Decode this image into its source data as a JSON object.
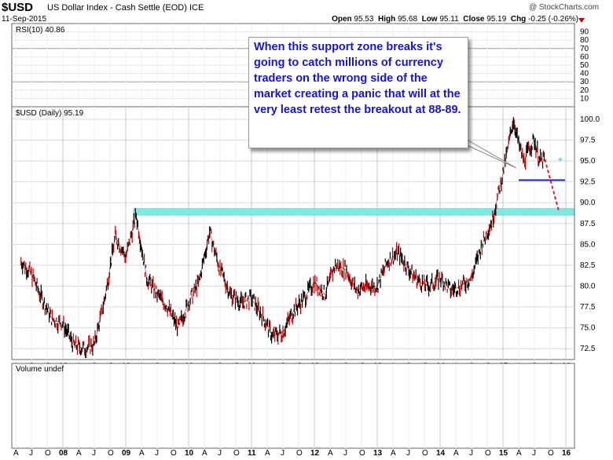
{
  "header": {
    "symbol": "$USD",
    "name": "US Dollar Index - Cash Settle (EOD)",
    "exchange": "ICE",
    "date": "11-Sep-2015",
    "copyright": "@ StockCharts.com",
    "open_label": "Open",
    "open": "95.53",
    "high_label": "High",
    "high": "95.68",
    "low_label": "Low",
    "low": "95.11",
    "close_label": "Close",
    "close": "95.19",
    "chg_label": "Chg",
    "chg": "-0.25 (-0.26%)"
  },
  "rsi_panel": {
    "label": "RSI(10) 40.86",
    "ticks": [
      "90",
      "80",
      "70",
      "60",
      "50",
      "40",
      "30",
      "20",
      "10"
    ]
  },
  "price_panel": {
    "label": "$USD (Daily) 95.19",
    "y_ticks": [
      "100.0",
      "97.5",
      "95.0",
      "92.5",
      "90.0",
      "87.5",
      "85.0",
      "82.5",
      "80.0",
      "77.5",
      "75.0",
      "72.5"
    ]
  },
  "volume_panel": {
    "label": "Volume undef"
  },
  "x_axis_labels": [
    "A",
    "J",
    "O",
    "08",
    "A",
    "J",
    "O",
    "09",
    "A",
    "J",
    "O",
    "10",
    "A",
    "J",
    "O",
    "11",
    "A",
    "J",
    "O",
    "12",
    "A",
    "J",
    "O",
    "13",
    "A",
    "J",
    "O",
    "14",
    "A",
    "J",
    "O",
    "15",
    "A",
    "J",
    "O",
    "16"
  ],
  "annotation": {
    "text": "When this support zone breaks it's going to catch millions of currency traders on the wrong side of the market creating a panic that will at the very least retest the breakout at 88-89."
  },
  "colors": {
    "support_zone": "#7fe8e0",
    "support_line": "#1a1acc",
    "projection": "#e02020",
    "price_up": "#000000",
    "price_down": "#cc0000",
    "annotation_text": "#1515d6"
  },
  "chart_data": {
    "type": "line",
    "title": "$USD (Daily) 95.19",
    "x": [
      "2007-05",
      "2007-07",
      "2007-09",
      "2007-11",
      "2008-01",
      "2008-03",
      "2008-05",
      "2008-07",
      "2008-09",
      "2008-11",
      "2009-01",
      "2009-03",
      "2009-05",
      "2009-07",
      "2009-09",
      "2009-11",
      "2010-01",
      "2010-03",
      "2010-05",
      "2010-07",
      "2010-09",
      "2010-11",
      "2011-01",
      "2011-03",
      "2011-05",
      "2011-07",
      "2011-09",
      "2011-11",
      "2012-01",
      "2012-03",
      "2012-05",
      "2012-07",
      "2012-09",
      "2012-11",
      "2013-01",
      "2013-03",
      "2013-05",
      "2013-07",
      "2013-09",
      "2013-11",
      "2014-01",
      "2014-03",
      "2014-05",
      "2014-07",
      "2014-09",
      "2014-11",
      "2015-01",
      "2015-03",
      "2015-04",
      "2015-05",
      "2015-06",
      "2015-07",
      "2015-08",
      "2015-09"
    ],
    "series": [
      {
        "values": [
          83.0,
          81.5,
          78.5,
          76.0,
          75.5,
          73.0,
          72.5,
          73.0,
          78.5,
          86.0,
          83.5,
          88.5,
          81.0,
          79.0,
          77.5,
          75.0,
          78.0,
          80.5,
          86.5,
          82.0,
          79.0,
          78.0,
          78.5,
          76.5,
          74.0,
          74.5,
          77.0,
          78.5,
          80.5,
          79.0,
          82.5,
          82.0,
          79.5,
          80.0,
          80.0,
          83.0,
          84.0,
          82.0,
          80.5,
          80.0,
          81.0,
          79.5,
          80.0,
          81.0,
          85.0,
          88.0,
          93.5,
          100.0,
          97.0,
          95.0,
          96.5,
          97.5,
          95.0,
          95.2
        ]
      }
    ],
    "support_zone": [
      88.5,
      89.3
    ],
    "support_line": 92.7,
    "projection_target": 89.0,
    "rsi_last": 40.86,
    "rsi_range": [
      0,
      100
    ],
    "y_range": [
      71.2,
      101.5
    ]
  }
}
